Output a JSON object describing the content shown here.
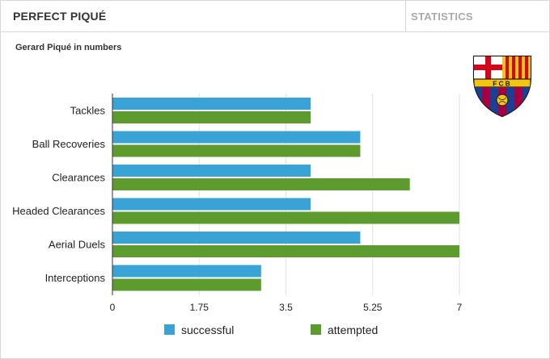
{
  "header": {
    "title": "PERFECT PIQUÉ",
    "tab": "STATISTICS"
  },
  "crest": {
    "text": "FCB",
    "colors": {
      "blue": "#1c3f94",
      "garnet": "#a50044",
      "gold": "#f3c50f",
      "red": "#d4061c"
    }
  },
  "chart_data": {
    "type": "bar",
    "orientation": "horizontal",
    "title": "Gerard Piqué in numbers",
    "categories": [
      "Tackles",
      "Ball Recoveries",
      "Clearances",
      "Headed Clearances",
      "Aerial Duels",
      "Interceptions"
    ],
    "series": [
      {
        "name": "successful",
        "color": "#3aa3d6",
        "values": [
          4,
          5,
          4,
          4,
          5,
          3
        ]
      },
      {
        "name": "attempted",
        "color": "#5e9b2f",
        "values": [
          4,
          5,
          6,
          7,
          7,
          3
        ]
      }
    ],
    "xlim": [
      0,
      7
    ],
    "xticks": [
      "0",
      "1.75",
      "3.5",
      "5.25",
      "7"
    ],
    "xtick_values": [
      0,
      1.75,
      3.5,
      5.25,
      7
    ],
    "grid": true,
    "legend_position": "bottom"
  }
}
